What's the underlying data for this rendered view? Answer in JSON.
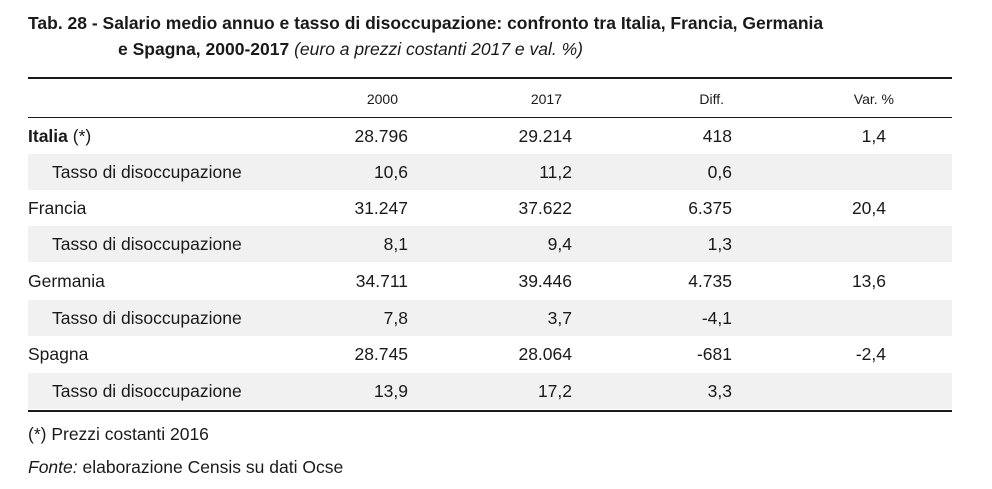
{
  "title": {
    "line1": "Tab. 28 - Salario medio annuo e tasso di disoccupazione: confronto tra Italia, Francia, Germania",
    "line2": "e Spagna, 2000-2017",
    "subtitle": "(euro a prezzi costanti 2017 e val. %)"
  },
  "table": {
    "headers": [
      "",
      "2000",
      "2017",
      "Diff.",
      "Var. %"
    ],
    "rows": [
      {
        "name": "Italia",
        "name_suffix": " (*)",
        "v2000": "28.796",
        "v2017": "29.214",
        "diff": "418",
        "var": "1,4"
      },
      {
        "name": "Tasso di disoccupazione",
        "v2000": "10,6",
        "v2017": "11,2",
        "diff": "0,6",
        "var": ""
      },
      {
        "name": "Francia",
        "v2000": "31.247",
        "v2017": "37.622",
        "diff": "6.375",
        "var": "20,4"
      },
      {
        "name": "Tasso di disoccupazione",
        "v2000": "8,1",
        "v2017": "9,4",
        "diff": "1,3",
        "var": ""
      },
      {
        "name": "Germania",
        "v2000": "34.711",
        "v2017": "39.446",
        "diff": "4.735",
        "var": "13,6"
      },
      {
        "name": "Tasso di disoccupazione",
        "v2000": "7,8",
        "v2017": "3,7",
        "diff": "-4,1",
        "var": ""
      },
      {
        "name": "Spagna",
        "v2000": "28.745",
        "v2017": "28.064",
        "diff": "-681",
        "var": "-2,4"
      },
      {
        "name": "Tasso di disoccupazione",
        "v2000": "13,9",
        "v2017": "17,2",
        "diff": "3,3",
        "var": ""
      }
    ]
  },
  "notes": {
    "footnote": "(*) Prezzi costanti 2016",
    "source_label": "Fonte:",
    "source_text": " elaborazione Censis su dati Ocse"
  }
}
